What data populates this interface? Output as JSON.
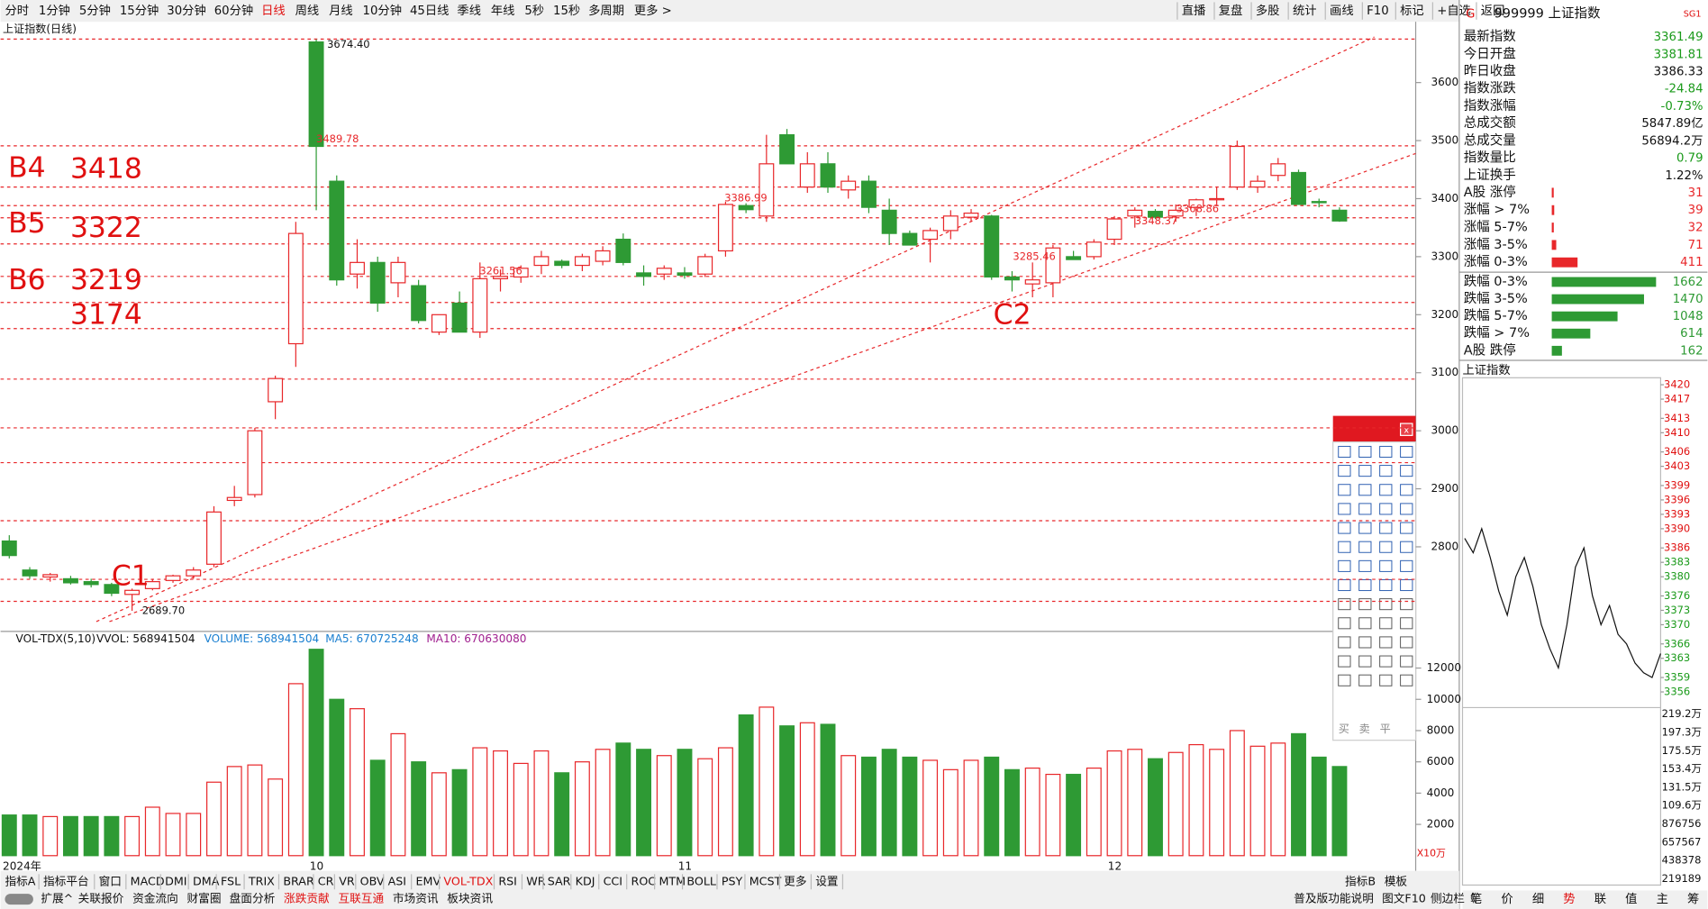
{
  "toolbar": {
    "periods": [
      "分时",
      "1分钟",
      "5分钟",
      "15分钟",
      "30分钟",
      "60分钟",
      "日线",
      "周线",
      "月线",
      "10分钟",
      "45日线",
      "季线",
      "年线",
      "5秒",
      "15秒",
      "多周期",
      "更多 >"
    ],
    "active_period": "日线",
    "tools": [
      "直播",
      "复盘",
      "多股",
      "统计",
      "画线",
      "F10",
      "标记",
      "+自选",
      "返回"
    ]
  },
  "chart_data": {
    "type": "candlestick",
    "title": "上证指数(日线)",
    "categories": [
      "2024年",
      null,
      null,
      null,
      null,
      null,
      null,
      null,
      null,
      null,
      null,
      null,
      null,
      null,
      null,
      "10",
      null,
      null,
      null,
      null,
      null,
      null,
      null,
      null,
      null,
      null,
      null,
      null,
      null,
      null,
      null,
      null,
      null,
      "11",
      null,
      null,
      null,
      null,
      null,
      null,
      null,
      null,
      null,
      null,
      null,
      null,
      null,
      null,
      null,
      null,
      null,
      null,
      null,
      null,
      "12",
      null,
      null,
      null,
      null,
      null,
      null,
      null,
      null,
      null,
      null,
      null
    ],
    "open": [
      2810,
      2760,
      2748,
      2745,
      2740,
      2735,
      2718,
      2728,
      2742,
      2750,
      2770,
      2880,
      2890,
      3050,
      3150,
      3670,
      3430,
      3270,
      3290,
      3255,
      3250,
      3170,
      3220,
      3170,
      3262,
      3265,
      3285,
      3292,
      3285,
      3292,
      3330,
      3272,
      3270,
      3272,
      3270,
      3310,
      3388,
      3370,
      3510,
      3420,
      3460,
      3415,
      3430,
      3380,
      3340,
      3330,
      3345,
      3368,
      3370,
      3265,
      3253,
      3255,
      3300,
      3300,
      3330,
      3370,
      3378,
      3370,
      3385,
      3398,
      3420,
      3420,
      3440,
      3445,
      3395,
      3380
    ],
    "high": [
      2820,
      2765,
      2755,
      2750,
      2745,
      2738,
      2728,
      2745,
      2752,
      2765,
      2870,
      2905,
      3005,
      3095,
      3360,
      3674.4,
      3440,
      3330,
      3300,
      3300,
      3260,
      3200,
      3240,
      3290,
      3278,
      3285,
      3310,
      3295,
      3305,
      3318,
      3340,
      3285,
      3285,
      3282,
      3305,
      3395,
      3392,
      3510,
      3520,
      3480,
      3480,
      3440,
      3440,
      3400,
      3345,
      3350,
      3380,
      3382,
      3372,
      3275,
      3290,
      3320,
      3310,
      3330,
      3370,
      3385,
      3382,
      3390,
      3400,
      3420,
      3500,
      3440,
      3470,
      3450,
      3400,
      3385
    ],
    "low": [
      2780,
      2745,
      2740,
      2735,
      2730,
      2715,
      2689.7,
      2725,
      2738,
      2745,
      2765,
      2870,
      2885,
      3020,
      3110,
      3380,
      3250,
      3245,
      3205,
      3230,
      3185,
      3165,
      3170,
      3160,
      3240,
      3255,
      3270,
      3280,
      3275,
      3285,
      3285,
      3250,
      3260,
      3262,
      3265,
      3300,
      3375,
      3360,
      3460,
      3410,
      3410,
      3400,
      3375,
      3320,
      3320,
      3290,
      3330,
      3360,
      3260,
      3240,
      3230,
      3230,
      3295,
      3295,
      3320,
      3350,
      3365,
      3360,
      3370,
      3390,
      3415,
      3410,
      3430,
      3390,
      3385,
      3360
    ],
    "close": [
      2785,
      2750,
      2752,
      2738,
      2735,
      2720,
      2725,
      2740,
      2750,
      2760,
      2860,
      2885,
      3000,
      3090,
      3340,
      3490,
      3260,
      3290,
      3220,
      3290,
      3190,
      3200,
      3170,
      3262,
      3266,
      3280,
      3300,
      3285,
      3300,
      3310,
      3290,
      3266,
      3280,
      3268,
      3300,
      3390,
      3381,
      3460,
      3460,
      3460,
      3420,
      3430,
      3385,
      3340,
      3320,
      3345,
      3370,
      3375,
      3265,
      3260,
      3260,
      3315,
      3295,
      3325,
      3365,
      3380,
      3368,
      3380,
      3398,
      3400,
      3490,
      3430,
      3460,
      3390,
      3393,
      3361.49
    ],
    "up_color": "#e8272a",
    "down_color": "#2e9a34",
    "ylim": [
      2658,
      3686
    ],
    "yticks": [
      3600,
      3500,
      3400,
      3300,
      3200,
      3100,
      3000,
      2900,
      2800
    ],
    "hlines": [
      3675,
      3491,
      3420,
      3388,
      3367,
      3322,
      3266,
      3221,
      3176,
      3089,
      3005,
      2945,
      2845,
      2744,
      2706
    ],
    "annotations": [
      "B4",
      "3418",
      "B5",
      "3322",
      "B6",
      "3219",
      "3174",
      "C1",
      "C2"
    ],
    "price_labels": [
      "3674.40",
      "3489.78",
      "3386.99",
      "3261.56",
      "3285.46",
      "3348.37",
      "3368.86",
      "2689.70"
    ],
    "volume": {
      "title": "VOL-TDX(5,10)",
      "legend": [
        "VVOL: 568941504",
        "VOLUME: 568941504",
        "MA5: 670725248",
        "MA10: 670630080"
      ],
      "unit": "X10万",
      "values": [
        2600,
        2600,
        2500,
        2500,
        2500,
        2500,
        2500,
        3100,
        2700,
        2700,
        4700,
        5700,
        5800,
        4900,
        11000,
        13200,
        10000,
        9400,
        6100,
        7800,
        6000,
        5300,
        5500,
        6900,
        6700,
        5900,
        6700,
        5300,
        6000,
        6800,
        7200,
        6800,
        6400,
        6800,
        6200,
        6900,
        9000,
        9500,
        8300,
        8500,
        8400,
        6400,
        6300,
        6800,
        6300,
        6100,
        5500,
        6100,
        6300,
        5500,
        5600,
        5200,
        5200,
        5600,
        6700,
        6800,
        6200,
        6600,
        7100,
        6800,
        8000,
        7000,
        7200,
        7800,
        6300,
        5700
      ],
      "ylim": [
        0,
        13300
      ],
      "yticks": [
        12000,
        10000,
        8000,
        6000,
        4000,
        2000
      ]
    }
  },
  "quote": {
    "title": "999999 上证指数",
    "badge": "SG1",
    "rows": [
      {
        "label": "最新指数",
        "value": "3361.49",
        "color": "#1a9a1a"
      },
      {
        "label": "今日开盘",
        "value": "3381.81",
        "color": "#1a9a1a"
      },
      {
        "label": "昨日收盘",
        "value": "3386.33",
        "color": "#111"
      },
      {
        "label": "指数涨跌",
        "value": "-24.84",
        "color": "#1a9a1a"
      },
      {
        "label": "指数涨幅",
        "value": "-0.73%",
        "color": "#1a9a1a"
      },
      {
        "label": "总成交额",
        "value": "5847.89亿",
        "color": "#111"
      },
      {
        "label": "总成交量",
        "value": "56894.2万",
        "color": "#111"
      },
      {
        "label": "指数量比",
        "value": "0.79",
        "color": "#1a9a1a"
      },
      {
        "label": "上证换手",
        "value": "1.22%",
        "color": "#111"
      }
    ]
  },
  "breadth": {
    "rows": [
      {
        "label": "A股 涨停",
        "count": 31,
        "color": "#e8272a"
      },
      {
        "label": "涨幅 > 7%",
        "count": 39,
        "color": "#e8272a"
      },
      {
        "label": "涨幅 5-7%",
        "count": 32,
        "color": "#e8272a"
      },
      {
        "label": "涨幅 3-5%",
        "count": 71,
        "color": "#e8272a"
      },
      {
        "label": "涨幅 0-3%",
        "count": 411,
        "color": "#e8272a"
      },
      {
        "label": "跌幅 0-3%",
        "count": 1662,
        "color": "#2e9a34"
      },
      {
        "label": "跌幅 3-5%",
        "count": 1470,
        "color": "#2e9a34"
      },
      {
        "label": "跌幅 5-7%",
        "count": 1048,
        "color": "#2e9a34"
      },
      {
        "label": "跌幅 > 7%",
        "count": 614,
        "color": "#2e9a34"
      },
      {
        "label": "A股 跌停",
        "count": 162,
        "color": "#2e9a34"
      }
    ],
    "xlim": [
      0,
      1700
    ]
  },
  "intraday": {
    "title": "上证指数",
    "price": [
      3388,
      3385,
      3390,
      3384,
      3377,
      3372,
      3380,
      3384,
      3378,
      3370,
      3365,
      3361,
      3370,
      3382,
      3386,
      3376,
      3370,
      3374,
      3368,
      3366,
      3362,
      3360,
      3359,
      3364
    ],
    "ylim": [
      3355,
      3421
    ],
    "yticks": [
      3420,
      3417,
      3413,
      3410,
      3406,
      3403,
      3399,
      3396,
      3393,
      3390,
      3386,
      3383,
      3380,
      3376,
      3373,
      3370,
      3366,
      3363,
      3359,
      3356
    ],
    "volume_labels": [
      "219.2万",
      "197.3万",
      "175.5万",
      "153.4万",
      "131.5万",
      "109.6万",
      "876756",
      "657567",
      "438378",
      "219189"
    ],
    "tabs": [
      "笔",
      "价",
      "细",
      "势",
      "联",
      "值",
      "主",
      "筹"
    ],
    "active_tab": "势"
  },
  "palette": {
    "trade": [
      "买",
      "卖",
      "平"
    ]
  },
  "bottom": {
    "indicators": [
      "指标A",
      "指标平台",
      "窗口",
      "MACD",
      "DMI",
      "DMA",
      "FSL",
      "TRIX",
      "BRAR",
      "CR",
      "VR",
      "OBV",
      "ASI",
      "EMV",
      "VOL-TDX",
      "RSI",
      "WR",
      "SAR",
      "KDJ",
      "CCI",
      "ROC",
      "MTM",
      "BOLL",
      "PSY",
      "MCST",
      "更多",
      "设置"
    ],
    "active_indicator": "VOL-TDX",
    "indicators_right": [
      "指标B",
      "模板"
    ],
    "tabs": [
      "扩展^",
      "关联报价",
      "资金流向",
      "财富圈",
      "盘面分析",
      "涨跌贡献",
      "互联互通",
      "市场资讯",
      "板块资讯"
    ],
    "tabs_right": [
      "普及版功能说明",
      "图文F10",
      "侧边栏《"
    ]
  }
}
